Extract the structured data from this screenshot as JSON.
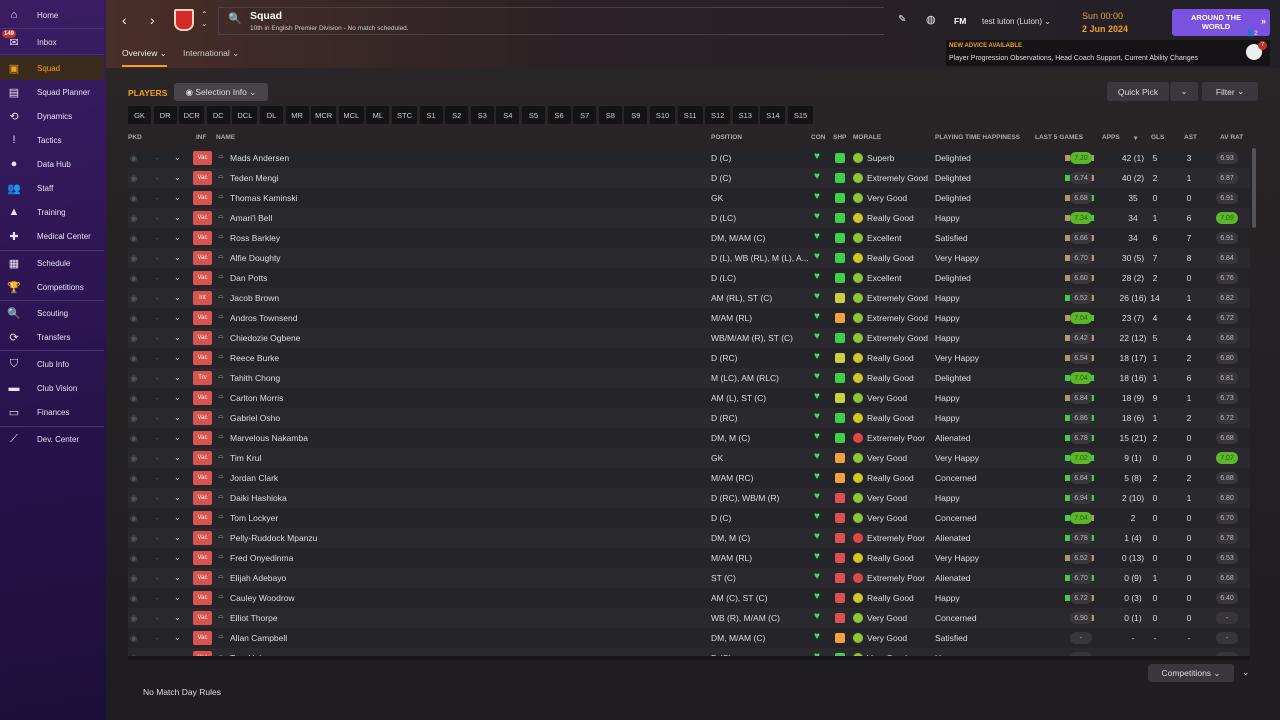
{
  "sidebar": {
    "items": [
      {
        "label": "Home",
        "icon": "home-icon",
        "glyph": "⌂"
      },
      {
        "label": "Inbox",
        "icon": "inbox-icon",
        "glyph": "✉",
        "badge": "149"
      },
      {
        "label": "Squad",
        "icon": "shirt-icon",
        "glyph": "▣",
        "active": true
      },
      {
        "label": "Squad Planner",
        "icon": "clipboard-icon",
        "glyph": "▤"
      },
      {
        "label": "Dynamics",
        "icon": "dynamics-icon",
        "glyph": "⟲"
      },
      {
        "label": "Tactics",
        "icon": "tactics-icon",
        "glyph": "!"
      },
      {
        "label": "Data Hub",
        "icon": "data-hub-icon",
        "glyph": "●"
      },
      {
        "label": "Staff",
        "icon": "staff-icon",
        "glyph": "👥"
      },
      {
        "label": "Training",
        "icon": "training-icon",
        "glyph": "▲"
      },
      {
        "label": "Medical Center",
        "icon": "medical-icon",
        "glyph": "✚"
      },
      {
        "label": "Schedule",
        "icon": "calendar-icon",
        "glyph": "▦"
      },
      {
        "label": "Competitions",
        "icon": "trophy-icon",
        "glyph": "🏆"
      },
      {
        "label": "Scouting",
        "icon": "search-icon",
        "glyph": "🔍"
      },
      {
        "label": "Transfers",
        "icon": "transfers-icon",
        "glyph": "⟳"
      },
      {
        "label": "Club Info",
        "icon": "shield-icon",
        "glyph": "⛉"
      },
      {
        "label": "Club Vision",
        "icon": "briefcase-icon",
        "glyph": "▬"
      },
      {
        "label": "Finances",
        "icon": "finances-icon",
        "glyph": "▭"
      },
      {
        "label": "Dev. Center",
        "icon": "dev-center-icon",
        "glyph": "⟋"
      }
    ]
  },
  "header": {
    "title": "Squad",
    "subtitle": "10th in English Premier Division - No match scheduled.",
    "tabs": [
      "Overview ⌄",
      "International ⌄"
    ],
    "fm": "FM",
    "manager": "test luton (Luton)",
    "day": "Sun 00:00",
    "date": "2 Jun 2024",
    "continue": "AROUND THE WORLD",
    "continue_count": "2",
    "advice_title": "NEW ADVICE AVAILABLE",
    "advice_text": "Player Progression Observations, Head Coach Support, Current Ability Changes",
    "advice_badge": "7"
  },
  "toolbar": {
    "players": "PLAYERS",
    "selection_info": "Selection Info",
    "quick_pick": "Quick Pick",
    "filter": "Filter"
  },
  "positions": [
    "GK",
    "DR",
    "DCR",
    "DC",
    "DCL",
    "DL",
    "MR",
    "MCR",
    "MCL",
    "ML",
    "STC",
    "S1",
    "S2",
    "S3",
    "S4",
    "S5",
    "S6",
    "S7",
    "S8",
    "S9",
    "S10",
    "S11",
    "S12",
    "S13",
    "S14",
    "S15"
  ],
  "columns": {
    "pkd": "PKD",
    "inf": "INF",
    "name": "NAME",
    "position": "POSITION",
    "con": "CON",
    "shp": "SHP",
    "morale": "MORALE",
    "pth": "PLAYING TIME HAPPINESS",
    "last5": "LAST 5 GAMES",
    "apps": "APPS",
    "gls": "GLS",
    "ast": "AST",
    "avrat": "AV RAT"
  },
  "colors": {
    "accent": "#f0a020",
    "continue": "#7b52e0",
    "shp_g": "#3ecf4a",
    "shp_y": "#c8d040",
    "shp_o": "#f0a040",
    "shp_r": "#e05050",
    "mor_g": "#8cc832",
    "mor_y": "#d0c820",
    "mor_r": "#e04848",
    "heart": "#3ee060"
  },
  "players": [
    {
      "inf": "Vac",
      "name": "Mads Andersen",
      "pos": "D (C)",
      "shp": "g",
      "morale": "Superb",
      "mc": "g",
      "pth": "Delighted",
      "form": "ttgtt",
      "l5": "7.20",
      "l5hi": true,
      "apps": "42 (1)",
      "gls": "5",
      "ast": "3",
      "avr": "6.93"
    },
    {
      "inf": "Vac",
      "name": "Teden Mengi",
      "pos": "D (C)",
      "shp": "g",
      "morale": "Extremely Good",
      "mc": "g",
      "pth": "Delighted",
      "form": "gtttt",
      "l5": "6.74",
      "apps": "40 (2)",
      "gls": "2",
      "ast": "1",
      "avr": "6.87"
    },
    {
      "inf": "Vac",
      "name": "Thomas Kaminski",
      "pos": "GK",
      "shp": "g",
      "morale": "Very Good",
      "mc": "g",
      "pth": "Delighted",
      "form": "ttttg",
      "l5": "6.68",
      "apps": "35",
      "gls": "0",
      "ast": "0",
      "avr": "6.91"
    },
    {
      "inf": "Vac",
      "name": "Amari'i Bell",
      "pos": "D (LC)",
      "shp": "g",
      "morale": "Really Good",
      "mc": "y",
      "pth": "Happy",
      "form": "ttggg",
      "l5": "7.34",
      "l5hi": true,
      "apps": "34",
      "gls": "1",
      "ast": "6",
      "avr": "7.09",
      "avrhi": true
    },
    {
      "inf": "Vac",
      "name": "Ross Barkley",
      "pos": "DM, M/AM (C)",
      "shp": "g",
      "morale": "Excellent",
      "mc": "g",
      "pth": "Satisfied",
      "form": "ttttt",
      "l5": "6.66",
      "apps": "34",
      "gls": "6",
      "ast": "7",
      "avr": "6.91"
    },
    {
      "inf": "Vac",
      "name": "Alfie Doughty",
      "pos": "D (L), WB (RL), M (L), A...",
      "shp": "g",
      "morale": "Really Good",
      "mc": "y",
      "pth": "Very Happy",
      "form": "ttttt",
      "l5": "6.70",
      "apps": "30 (5)",
      "gls": "7",
      "ast": "8",
      "avr": "6.84"
    },
    {
      "inf": "Vac",
      "name": "Dan Potts",
      "pos": "D (LC)",
      "shp": "g",
      "morale": "Excellent",
      "mc": "g",
      "pth": "Delighted",
      "form": "tttgt",
      "l5": "6.60",
      "apps": "28 (2)",
      "gls": "2",
      "ast": "0",
      "avr": "6.76"
    },
    {
      "inf": "Int",
      "name": "Jacob Brown",
      "pos": "AM (RL), ST (C)",
      "shp": "y",
      "morale": "Extremely Good",
      "mc": "g",
      "pth": "Happy",
      "form": "gtttt",
      "l5": "6.52",
      "apps": "26 (16)",
      "gls": "14",
      "ast": "1",
      "avr": "6.82"
    },
    {
      "inf": "Vac",
      "name": "Andros Townsend",
      "pos": "M/AM (RL)",
      "shp": "o",
      "morale": "Extremely Good",
      "mc": "g",
      "pth": "Happy",
      "form": "tttgg",
      "l5": "7.04",
      "l5hi": true,
      "apps": "23 (7)",
      "gls": "4",
      "ast": "4",
      "avr": "6.72"
    },
    {
      "inf": "Vac",
      "name": "Chiedozie Ogbene",
      "pos": "WB/M/AM (R), ST (C)",
      "shp": "g",
      "morale": "Extremely Good",
      "mc": "g",
      "pth": "Happy",
      "form": "ttttt",
      "l5": "6.42",
      "apps": "22 (12)",
      "gls": "5",
      "ast": "4",
      "avr": "6.68"
    },
    {
      "inf": "Vac",
      "name": "Reece Burke",
      "pos": "D (RC)",
      "shp": "y",
      "morale": "Really Good",
      "mc": "y",
      "pth": "Very Happy",
      "form": "ttttt",
      "l5": "6.54",
      "apps": "18 (17)",
      "gls": "1",
      "ast": "2",
      "avr": "6.80"
    },
    {
      "inf": "Trv",
      "name": "Tahith Chong",
      "pos": "M (LC), AM (RLC)",
      "shp": "g",
      "morale": "Really Good",
      "mc": "y",
      "pth": "Delighted",
      "form": "ggggg",
      "l5": "7.04",
      "l5hi": true,
      "apps": "18 (16)",
      "gls": "1",
      "ast": "6",
      "avr": "6.81"
    },
    {
      "inf": "Vac",
      "name": "Carlton Morris",
      "pos": "AM (L), ST (C)",
      "shp": "y",
      "morale": "Very Good",
      "mc": "g",
      "pth": "Happy",
      "form": "tttgg",
      "l5": "6.84",
      "apps": "18 (9)",
      "gls": "9",
      "ast": "1",
      "avr": "6.73"
    },
    {
      "inf": "Vac",
      "name": "Gabriel Osho",
      "pos": "D (RC)",
      "shp": "g",
      "morale": "Really Good",
      "mc": "y",
      "pth": "Happy",
      "form": "ggggg",
      "l5": "6.86",
      "apps": "18 (6)",
      "gls": "1",
      "ast": "2",
      "avr": "6.72"
    },
    {
      "inf": "Vac",
      "name": "Marvelous Nakamba",
      "pos": "DM, M (C)",
      "shp": "g",
      "morale": "Extremely Poor",
      "mc": "r",
      "pth": "Alienated",
      "form": "ggggg",
      "l5": "6.78",
      "apps": "15 (21)",
      "gls": "2",
      "ast": "0",
      "avr": "6.68"
    },
    {
      "inf": "Vac",
      "name": "Tim Krul",
      "pos": "GK",
      "shp": "o",
      "morale": "Very Good",
      "mc": "g",
      "pth": "Very Happy",
      "form": "ggggg",
      "l5": "7.02",
      "l5hi": true,
      "apps": "9 (1)",
      "gls": "0",
      "ast": "0",
      "avr": "7.07",
      "avrhi": true
    },
    {
      "inf": "Vac",
      "name": "Jordan Clark",
      "pos": "M/AM (RC)",
      "shp": "o",
      "morale": "Really Good",
      "mc": "y",
      "pth": "Concerned",
      "form": "ggggg",
      "l5": "6.64",
      "apps": "5 (8)",
      "gls": "2",
      "ast": "2",
      "avr": "6.88"
    },
    {
      "inf": "Vac",
      "name": "Daiki Hashioka",
      "pos": "D (RC), WB/M (R)",
      "shp": "r",
      "morale": "Very Good",
      "mc": "g",
      "pth": "Happy",
      "form": "ggggg",
      "l5": "6.94",
      "apps": "2 (10)",
      "gls": "0",
      "ast": "1",
      "avr": "6.80"
    },
    {
      "inf": "Vac",
      "name": "Tom Lockyer",
      "pos": "D (C)",
      "shp": "r",
      "morale": "Very Good",
      "mc": "g",
      "pth": "Concerned",
      "form": "ggggt",
      "l5": "7.04",
      "l5hi": true,
      "apps": "2",
      "gls": "0",
      "ast": "0",
      "avr": "6.70"
    },
    {
      "inf": "Vac",
      "name": "Pelly-Ruddock Mpanzu",
      "pos": "DM, M (C)",
      "shp": "r",
      "morale": "Extremely Poor",
      "mc": "r",
      "pth": "Alienated",
      "form": "ggggg",
      "l5": "6.78",
      "apps": "1 (4)",
      "gls": "0",
      "ast": "0",
      "avr": "6.78"
    },
    {
      "inf": "Vac",
      "name": "Fred Onyedinma",
      "pos": "M/AM (RL)",
      "shp": "r",
      "morale": "Really Good",
      "mc": "y",
      "pth": "Very Happy",
      "form": "ttttt",
      "l5": "6.52",
      "apps": "0 (13)",
      "gls": "0",
      "ast": "0",
      "avr": "6.53"
    },
    {
      "inf": "Vac",
      "name": "Elijah Adebayo",
      "pos": "ST (C)",
      "shp": "r",
      "morale": "Extremely Poor",
      "mc": "r",
      "pth": "Alienated",
      "form": "ggggg",
      "l5": "6.70",
      "apps": "0 (9)",
      "gls": "1",
      "ast": "0",
      "avr": "6.68"
    },
    {
      "inf": "Vac",
      "name": "Cauley Woodrow",
      "pos": "AM (C), ST (C)",
      "shp": "r",
      "morale": "Really Good",
      "mc": "y",
      "pth": "Happy",
      "form": "gggtt",
      "l5": "6.72",
      "apps": "0 (3)",
      "gls": "0",
      "ast": "0",
      "avr": "6.40"
    },
    {
      "inf": "Vac",
      "name": "Elliot Thorpe",
      "pos": "WB (R), M/AM (C)",
      "shp": "r",
      "morale": "Very Good",
      "mc": "g",
      "pth": "Concerned",
      "form": "gtt",
      "l5": "6.90",
      "apps": "0 (1)",
      "gls": "0",
      "ast": "0",
      "avr": "-"
    },
    {
      "inf": "Vac",
      "name": "Allan Campbell",
      "pos": "DM, M/AM (C)",
      "shp": "o",
      "morale": "Very Good",
      "mc": "g",
      "pth": "Satisfied",
      "form": "",
      "l5": "-",
      "apps": "-",
      "gls": "-",
      "ast": "-",
      "avr": "-"
    },
    {
      "inf": "Vac",
      "name": "Tom Holmes",
      "pos": "D (C)",
      "shp": "g",
      "morale": "Very Good",
      "mc": "g",
      "pth": "Happy",
      "form": "",
      "l5": "-",
      "apps": "-",
      "gls": "-",
      "ast": "-",
      "avr": "-"
    }
  ],
  "footer": {
    "rules": "No Match Day Rules",
    "competitions": "Competitions"
  }
}
